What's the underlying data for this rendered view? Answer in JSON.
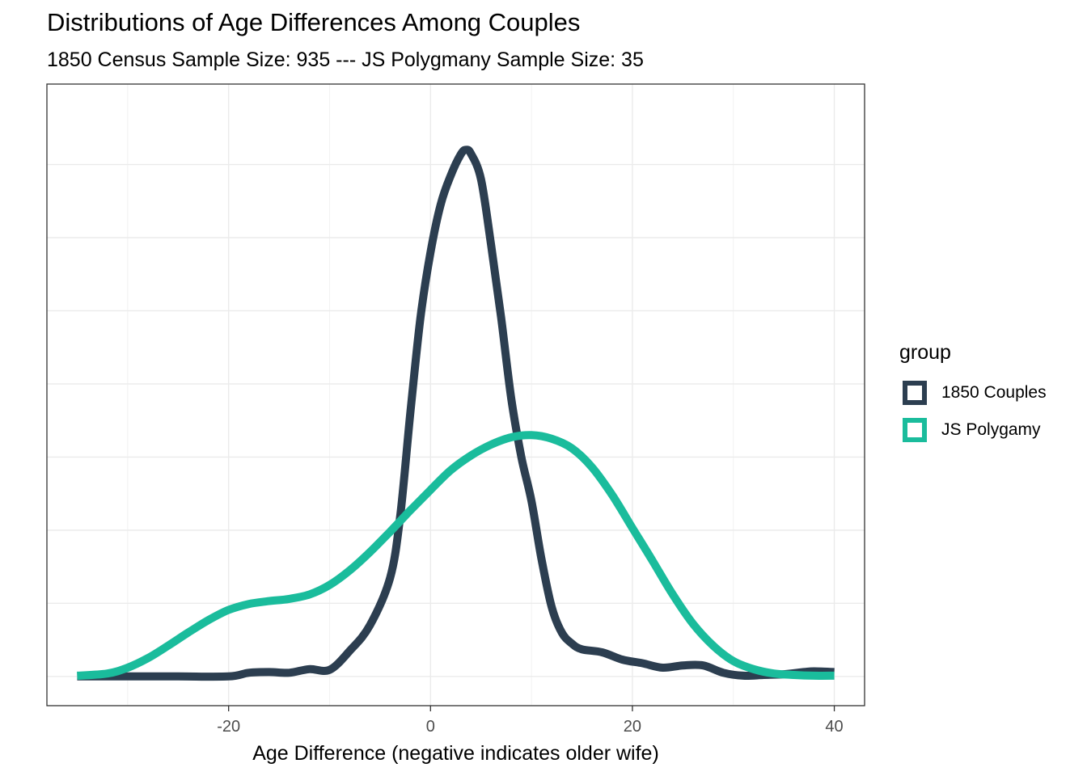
{
  "chart_data": {
    "type": "line",
    "title": "Distributions of Age Differences Among Couples",
    "subtitle": "1850 Census Sample Size: 935 --- JS Polygmany Sample Size: 35",
    "xlabel": "Age Difference (negative indicates older wife)",
    "ylabel": "",
    "xlim": [
      -38,
      43
    ],
    "ylim": [
      -0.004,
      0.081
    ],
    "x_ticks": [
      -20,
      0,
      20,
      40
    ],
    "x_tick_labels": [
      "-20",
      "0",
      "20",
      "40"
    ],
    "y_ticks_unlabeled": [
      0,
      0.01,
      0.02,
      0.03,
      0.04,
      0.05,
      0.06,
      0.07
    ],
    "grid": true,
    "legend": {
      "title": "group",
      "position": "right"
    },
    "series": [
      {
        "name": "1850 Couples",
        "color": "#2c3e50",
        "x": [
          -35,
          -30,
          -25,
          -20,
          -18,
          -16,
          -14,
          -12,
          -10,
          -8,
          -6,
          -4,
          -3,
          -2,
          -1,
          0,
          1,
          2,
          3,
          3.5,
          4,
          5,
          6,
          7,
          8,
          9,
          10,
          11,
          12,
          13,
          14,
          15,
          17,
          19,
          21,
          23,
          25,
          27,
          29,
          31,
          33,
          35,
          37,
          38,
          40
        ],
        "y": [
          0,
          0,
          0,
          0,
          0.0005,
          0.0006,
          0.0005,
          0.001,
          0.0009,
          0.0035,
          0.007,
          0.0135,
          0.022,
          0.036,
          0.049,
          0.058,
          0.0645,
          0.0685,
          0.0714,
          0.072,
          0.0715,
          0.068,
          0.059,
          0.049,
          0.038,
          0.03,
          0.024,
          0.016,
          0.0095,
          0.006,
          0.0045,
          0.0037,
          0.0033,
          0.0023,
          0.0018,
          0.0012,
          0.0015,
          0.0015,
          0.0005,
          0.0001,
          0.0002,
          0.0003,
          0.0006,
          0.0007,
          0.0006
        ]
      },
      {
        "name": "JS Polygamy",
        "color": "#1abc9c",
        "x": [
          -35,
          -32,
          -30,
          -28,
          -26,
          -24,
          -22,
          -20,
          -18,
          -16,
          -14,
          -12,
          -10,
          -8,
          -6,
          -4,
          -2,
          0,
          2,
          4,
          6,
          8,
          10,
          12,
          14,
          16,
          18,
          20,
          22,
          24,
          26,
          28,
          30,
          32,
          34,
          36,
          38,
          40
        ],
        "y": [
          0.0001,
          0.0004,
          0.0012,
          0.0025,
          0.0042,
          0.006,
          0.0077,
          0.0091,
          0.0099,
          0.0103,
          0.0106,
          0.0112,
          0.0125,
          0.0145,
          0.017,
          0.0198,
          0.0227,
          0.0255,
          0.0282,
          0.0302,
          0.0317,
          0.0327,
          0.033,
          0.0325,
          0.0312,
          0.0286,
          0.0248,
          0.0203,
          0.0158,
          0.0112,
          0.0072,
          0.0042,
          0.0021,
          0.001,
          0.0004,
          0.0002,
          0.0001,
          0.0001
        ]
      }
    ]
  }
}
